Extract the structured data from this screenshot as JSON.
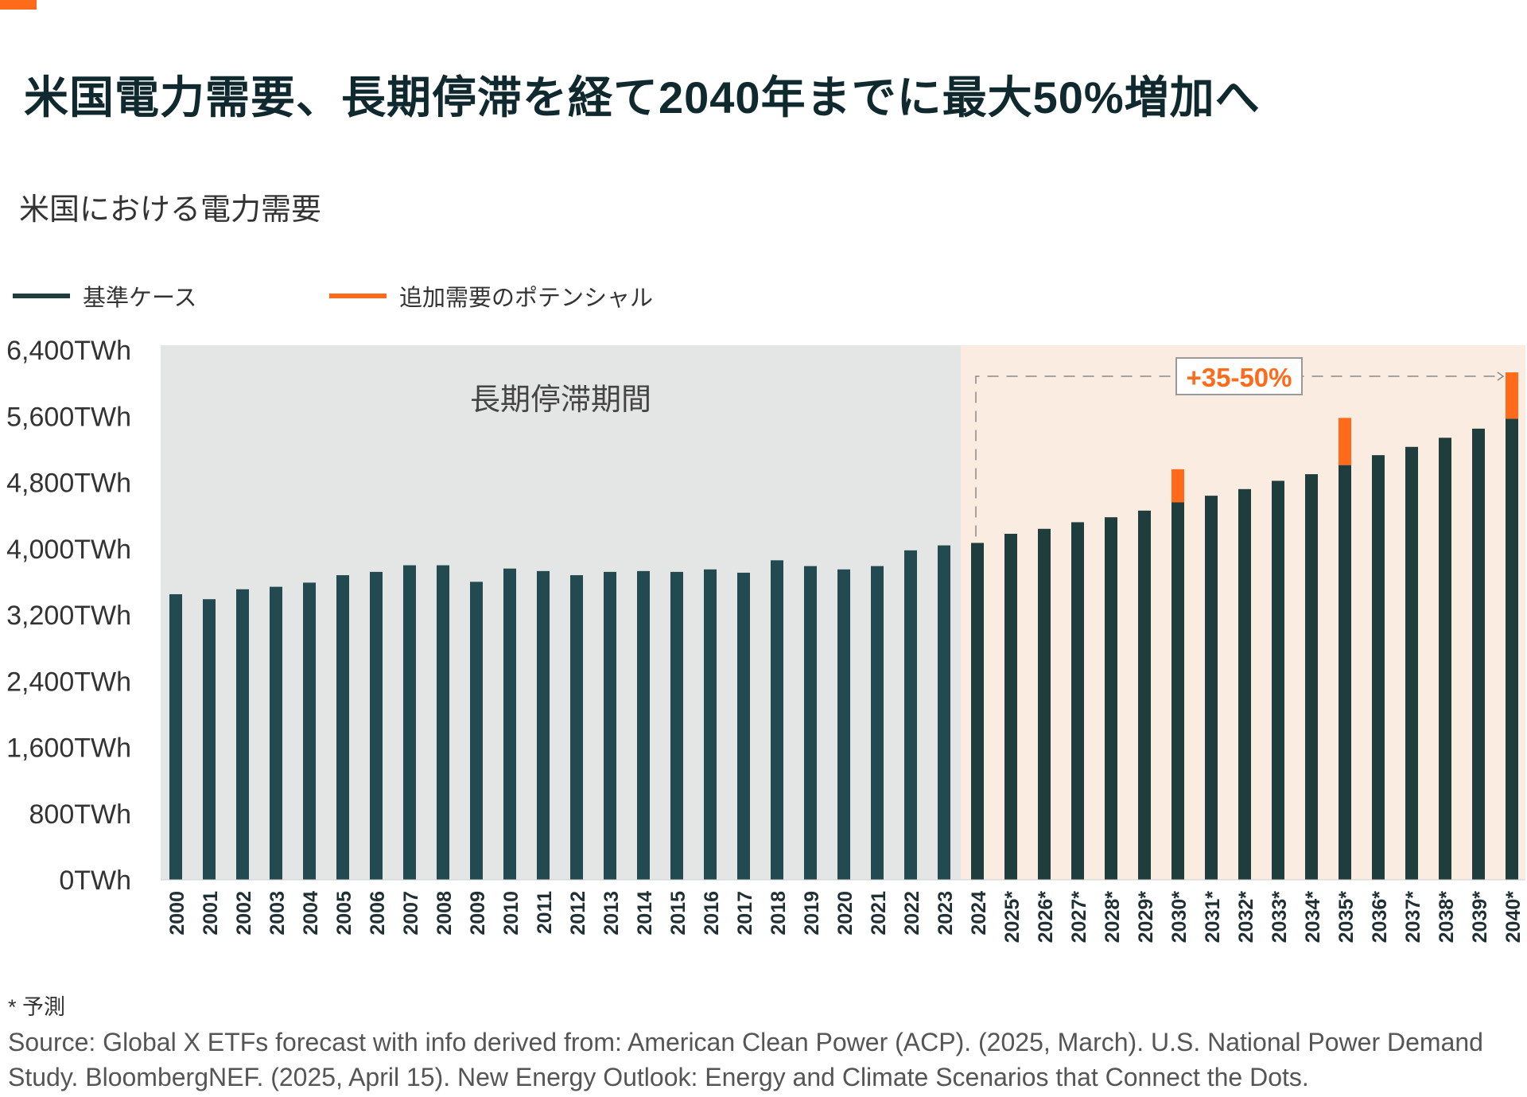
{
  "header": {
    "title": "米国電力需要、長期停滞を経て2040年までに最大50%増加へ",
    "subtitle": "米国における電力需要"
  },
  "colors": {
    "accent": "#ff6b1a",
    "base_bar": "#1e3d3c",
    "potential_bar": "#ff6b1a",
    "stagnation_bg": "#e4e6e6",
    "forecast_bg": "#faece0"
  },
  "legend": [
    {
      "label": "基準ケース",
      "color": "#1e3d3c"
    },
    {
      "label": "追加需要のポテンシャル",
      "color": "#ff6b1a"
    }
  ],
  "chart_data": {
    "type": "bar",
    "categories": [
      "2000",
      "2001",
      "2002",
      "2003",
      "2004",
      "2005",
      "2006",
      "2007",
      "2008",
      "2009",
      "2010",
      "2011",
      "2012",
      "2013",
      "2014",
      "2015",
      "2016",
      "2017",
      "2018",
      "2019",
      "2020",
      "2021",
      "2022",
      "2023",
      "2024",
      "2025*",
      "2026*",
      "2027*",
      "2028*",
      "2029*",
      "2030*",
      "2031*",
      "2032*",
      "2033*",
      "2034*",
      "2035*",
      "2036*",
      "2037*",
      "2038*",
      "2039*",
      "2040*"
    ],
    "series": [
      {
        "name": "基準ケース",
        "values": [
          3450,
          3390,
          3510,
          3540,
          3590,
          3680,
          3720,
          3800,
          3800,
          3600,
          3760,
          3730,
          3680,
          3720,
          3730,
          3720,
          3750,
          3710,
          3860,
          3790,
          3750,
          3790,
          3980,
          4040,
          4070,
          4180,
          4240,
          4320,
          4380,
          4460,
          4560,
          4640,
          4720,
          4820,
          4900,
          5010,
          5130,
          5230,
          5340,
          5450,
          5570
        ]
      },
      {
        "name": "追加需要のポテンシャル",
        "values": [
          0,
          0,
          0,
          0,
          0,
          0,
          0,
          0,
          0,
          0,
          0,
          0,
          0,
          0,
          0,
          0,
          0,
          0,
          0,
          0,
          0,
          0,
          0,
          0,
          0,
          0,
          0,
          0,
          0,
          0,
          400,
          0,
          0,
          0,
          0,
          570,
          0,
          0,
          0,
          0,
          560
        ]
      }
    ],
    "y_ticks": [
      "0TWh",
      "800TWh",
      "1,600TWh",
      "2,400TWh",
      "3,200TWh",
      "4,000TWh",
      "4,800TWh",
      "5,600TWh",
      "6,400TWh"
    ],
    "y_tick_values": [
      0,
      800,
      1600,
      2400,
      3200,
      4000,
      4800,
      5600,
      6400
    ],
    "ylim": [
      0,
      6400
    ],
    "xlabel": "",
    "ylabel": "",
    "grid": false,
    "legend_position": "top-left",
    "stagnation_period": {
      "label": "長期停滞期間",
      "from": "2000",
      "to": "2023"
    },
    "forecast_period": {
      "from": "2024",
      "to": "2040*"
    },
    "annotation": {
      "text": "+35-50%",
      "from": "2024",
      "to": "2040*"
    }
  },
  "footnote": "* 予測",
  "source": "Source: Global X ETFs forecast with info derived from: American Clean Power (ACP). (2025, March). U.S. National Power Demand Study. BloombergNEF. (2025, April 15). New Energy Outlook: Energy and Climate Scenarios that Connect the Dots."
}
